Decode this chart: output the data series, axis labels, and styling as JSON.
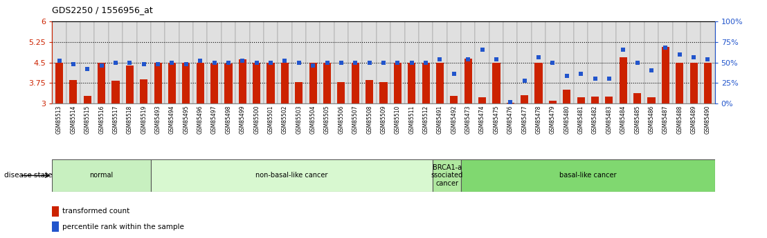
{
  "title": "GDS2250 / 1556956_at",
  "samples": [
    "GSM85513",
    "GSM85514",
    "GSM85515",
    "GSM85516",
    "GSM85517",
    "GSM85518",
    "GSM85519",
    "GSM85493",
    "GSM85494",
    "GSM85495",
    "GSM85496",
    "GSM85497",
    "GSM85498",
    "GSM85499",
    "GSM85500",
    "GSM85501",
    "GSM85502",
    "GSM85503",
    "GSM85504",
    "GSM85505",
    "GSM85506",
    "GSM85507",
    "GSM85508",
    "GSM85509",
    "GSM85510",
    "GSM85511",
    "GSM85512",
    "GSM85491",
    "GSM85492",
    "GSM85473",
    "GSM85474",
    "GSM85475",
    "GSM85476",
    "GSM85477",
    "GSM85478",
    "GSM85479",
    "GSM85480",
    "GSM85481",
    "GSM85482",
    "GSM85483",
    "GSM85484",
    "GSM85485",
    "GSM85486",
    "GSM85487",
    "GSM85488",
    "GSM85489",
    "GSM85490"
  ],
  "bar_values": [
    4.5,
    3.85,
    3.28,
    4.5,
    3.83,
    4.4,
    3.88,
    4.5,
    4.5,
    4.5,
    4.5,
    4.46,
    4.46,
    4.62,
    4.5,
    4.5,
    4.5,
    3.78,
    4.5,
    4.5,
    3.78,
    4.5,
    3.85,
    3.78,
    4.5,
    4.5,
    4.5,
    4.5,
    3.28,
    4.65,
    3.24,
    4.5,
    3.02,
    3.3,
    4.5,
    3.11,
    3.5,
    3.22,
    3.26,
    3.26,
    4.68,
    3.38,
    3.22,
    5.08,
    4.5,
    4.5,
    4.5
  ],
  "percentile_values": [
    52,
    48,
    42,
    46,
    50,
    50,
    48,
    48,
    50,
    48,
    52,
    50,
    50,
    52,
    50,
    50,
    52,
    50,
    46,
    50,
    50,
    50,
    50,
    50,
    50,
    50,
    50,
    54,
    36,
    54,
    66,
    54,
    2,
    28,
    56,
    50,
    34,
    36,
    30,
    30,
    66,
    50,
    40,
    68,
    60,
    56,
    54
  ],
  "disease_state_groups": [
    {
      "label": "normal",
      "start": 0,
      "end": 7,
      "color": "#c8f0c0"
    },
    {
      "label": "non-basal-like cancer",
      "start": 7,
      "end": 27,
      "color": "#d8f8d0"
    },
    {
      "label": "BRCA1-a\nssociated\ncancer",
      "start": 27,
      "end": 29,
      "color": "#b0e8a0"
    },
    {
      "label": "basal-like cancer",
      "start": 29,
      "end": 47,
      "color": "#80d870"
    }
  ],
  "ymin": 3.0,
  "ymax": 6.0,
  "yticks": [
    3.0,
    3.75,
    4.5,
    5.25,
    6.0
  ],
  "ytick_labels": [
    "3",
    "3.75",
    "4.5",
    "5.25",
    "6"
  ],
  "right_yticks": [
    0,
    25,
    50,
    75,
    100
  ],
  "right_ytick_labels": [
    "0%",
    "25%",
    "50%",
    "75%",
    "100%"
  ],
  "bar_color": "#cc2200",
  "dot_color": "#2255cc",
  "hlines": [
    3.75,
    4.5,
    5.25
  ],
  "bar_width": 0.55,
  "left_label_color": "#cc2200",
  "right_label_color": "#2255cc",
  "disease_state_label": "disease state",
  "legend_bar_label": "transformed count",
  "legend_dot_label": "percentile rank within the sample"
}
